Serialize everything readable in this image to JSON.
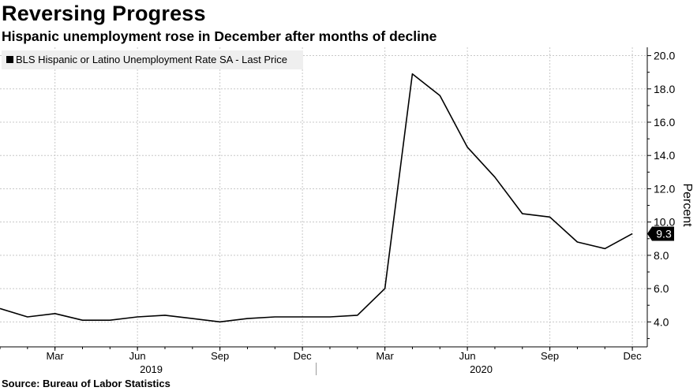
{
  "title": "Reversing Progress",
  "subtitle": "Hispanic unemployment rose in December after months of decline",
  "source": "Source: Bureau of Labor Statistics",
  "chart_data": {
    "type": "line",
    "series": [
      {
        "name": "BLS Hispanic or Latino Unemployment Rate SA - Last Price",
        "x": [
          "2019-01",
          "2019-02",
          "2019-03",
          "2019-04",
          "2019-05",
          "2019-06",
          "2019-07",
          "2019-08",
          "2019-09",
          "2019-10",
          "2019-11",
          "2019-12",
          "2020-01",
          "2020-02",
          "2020-03",
          "2020-04",
          "2020-05",
          "2020-06",
          "2020-07",
          "2020-08",
          "2020-09",
          "2020-10",
          "2020-11",
          "2020-12"
        ],
        "values": [
          4.8,
          4.3,
          4.5,
          4.1,
          4.1,
          4.3,
          4.4,
          4.2,
          4.0,
          4.2,
          4.3,
          4.3,
          4.3,
          4.4,
          6.0,
          18.9,
          17.6,
          14.5,
          12.7,
          10.5,
          10.3,
          8.8,
          8.4,
          9.3
        ],
        "color": "#000000"
      }
    ],
    "x_tick_labels": [
      "Mar",
      "Jun",
      "Sep",
      "Dec",
      "Mar",
      "Jun",
      "Sep",
      "Dec"
    ],
    "year_labels": [
      "2019",
      "2020"
    ],
    "y_tick_labels": [
      "4.0",
      "6.0",
      "8.0",
      "10.0",
      "12.0",
      "14.0",
      "16.0",
      "18.0",
      "20.0"
    ],
    "ylabel": "Percent",
    "ylim": [
      2.5,
      20.5
    ],
    "last_value_label": "9.3",
    "legend_position": "top-left",
    "grid": true
  }
}
